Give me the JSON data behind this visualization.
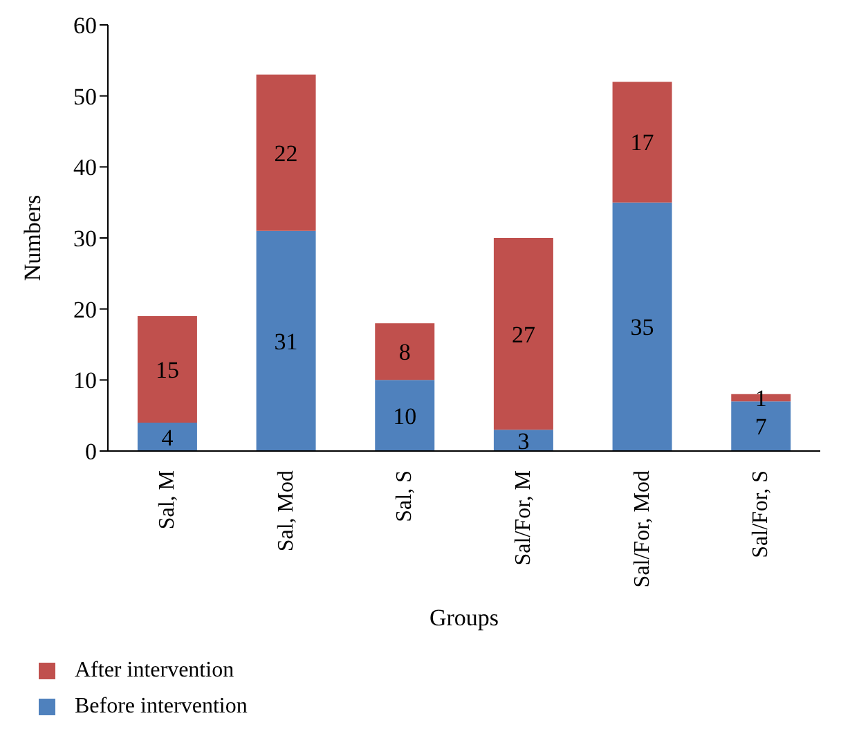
{
  "chart_data": {
    "type": "bar",
    "stacked": true,
    "xlabel": "Groups",
    "ylabel": "Numbers",
    "categories": [
      "Sal, M",
      "Sal, Mod",
      "Sal, S",
      "Sal/For, M",
      "Sal/For, Mod",
      "Sal/For, S"
    ],
    "series": [
      {
        "name": "Before intervention",
        "color": "#4f81bd",
        "values": [
          4,
          31,
          10,
          3,
          35,
          7
        ]
      },
      {
        "name": "After intervention",
        "color": "#c0504d",
        "values": [
          15,
          22,
          8,
          27,
          17,
          1
        ]
      }
    ],
    "ylim": [
      0,
      60
    ],
    "yticks": [
      0,
      10,
      20,
      30,
      40,
      50,
      60
    ],
    "grid": false,
    "legend": "bottom left",
    "data_labels": true
  }
}
